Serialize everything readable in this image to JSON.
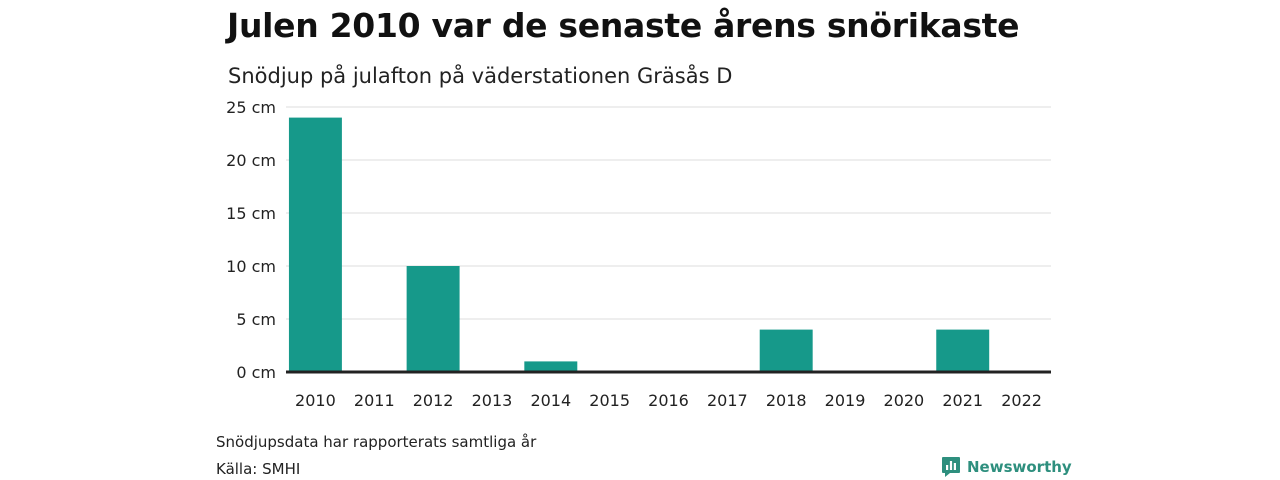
{
  "chart_data": {
    "type": "bar",
    "title": "Julen 2010 var de senaste årens snörikaste",
    "subtitle": "Snödjup på julafton på väderstationen Gräsås D",
    "categories": [
      "2010",
      "2011",
      "2012",
      "2013",
      "2014",
      "2015",
      "2016",
      "2017",
      "2018",
      "2019",
      "2020",
      "2021",
      "2022"
    ],
    "values": [
      24,
      0,
      10,
      0,
      1,
      0,
      0,
      0,
      4,
      0,
      0,
      4,
      0
    ],
    "y_ticks": [
      0,
      5,
      10,
      15,
      20,
      25
    ],
    "y_tick_suffix": " cm",
    "ylim": [
      0,
      25
    ],
    "grid": true,
    "bar_color": "#16998a",
    "xlabel": "",
    "ylabel": ""
  },
  "footer": {
    "note": "Snödjupsdata har rapporterats samtliga år",
    "source": "Källa: SMHI"
  },
  "brand": {
    "name": "Newsworthy",
    "icon": "newsworthy-logo-icon",
    "color": "#2e8f7e"
  }
}
